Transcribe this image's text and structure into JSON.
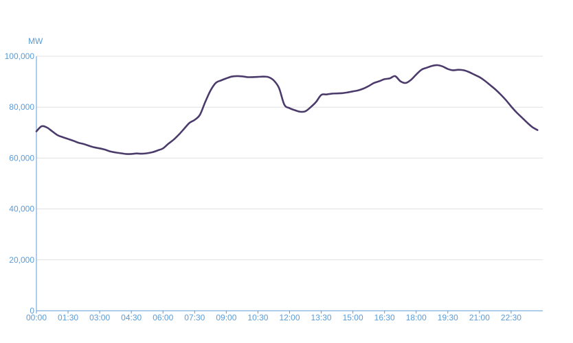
{
  "chart_data": {
    "type": "line",
    "title": "",
    "xlabel": "",
    "ylabel": "MW",
    "ylim": [
      0,
      100000
    ],
    "grid": true,
    "x_ticks": [
      "00:00",
      "01:30",
      "03:00",
      "04:30",
      "06:00",
      "07:30",
      "09:00",
      "10:30",
      "12:00",
      "13:30",
      "15:00",
      "16:30",
      "18:00",
      "19:30",
      "21:00",
      "22:30"
    ],
    "y_ticks": [
      "0",
      "20,000",
      "40,000",
      "60,000",
      "80,000",
      "100,000"
    ],
    "series": [
      {
        "color": "#4b3b6b",
        "x": [
          "00:00",
          "00:15",
          "00:30",
          "00:45",
          "01:00",
          "01:15",
          "01:30",
          "01:45",
          "02:00",
          "02:15",
          "02:30",
          "02:45",
          "03:00",
          "03:15",
          "03:30",
          "03:45",
          "04:00",
          "04:15",
          "04:30",
          "04:45",
          "05:00",
          "05:15",
          "05:30",
          "05:45",
          "06:00",
          "06:15",
          "06:30",
          "06:45",
          "07:00",
          "07:15",
          "07:30",
          "07:45",
          "08:00",
          "08:15",
          "08:30",
          "08:45",
          "09:00",
          "09:15",
          "09:30",
          "09:45",
          "10:00",
          "10:15",
          "10:30",
          "10:45",
          "11:00",
          "11:15",
          "11:30",
          "11:45",
          "12:00",
          "12:15",
          "12:30",
          "12:45",
          "13:00",
          "13:15",
          "13:30",
          "13:45",
          "14:00",
          "14:15",
          "14:30",
          "14:45",
          "15:00",
          "15:15",
          "15:30",
          "15:45",
          "16:00",
          "16:15",
          "16:30",
          "16:45",
          "17:00",
          "17:15",
          "17:30",
          "17:45",
          "18:00",
          "18:15",
          "18:30",
          "18:45",
          "19:00",
          "19:15",
          "19:30",
          "19:45",
          "20:00",
          "20:15",
          "20:30",
          "20:45",
          "21:00",
          "21:15",
          "21:30",
          "21:45",
          "22:00",
          "22:15",
          "22:30",
          "22:45",
          "23:00",
          "23:15",
          "23:30",
          "23:45"
        ],
        "values": [
          70500,
          72500,
          72000,
          70500,
          69000,
          68200,
          67500,
          66800,
          66000,
          65500,
          64800,
          64200,
          63800,
          63300,
          62600,
          62200,
          61900,
          61600,
          61600,
          61800,
          61700,
          61900,
          62300,
          63000,
          63800,
          65600,
          67200,
          69200,
          71500,
          73800,
          75000,
          77000,
          82000,
          86500,
          89500,
          90500,
          91300,
          92000,
          92200,
          92100,
          91800,
          91800,
          91900,
          92000,
          91800,
          90500,
          87500,
          81000,
          79600,
          78800,
          78200,
          78400,
          80000,
          82000,
          84800,
          85000,
          85300,
          85400,
          85500,
          85800,
          86200,
          86600,
          87300,
          88300,
          89500,
          90200,
          91000,
          91300,
          92200,
          90200,
          89500,
          90700,
          92800,
          94700,
          95500,
          96200,
          96500,
          96000,
          95000,
          94500,
          94700,
          94500,
          93800,
          92800,
          91800,
          90400,
          88700,
          87000,
          85000,
          82800,
          80300,
          78000,
          76000,
          74000,
          72200,
          71000
        ]
      }
    ]
  }
}
